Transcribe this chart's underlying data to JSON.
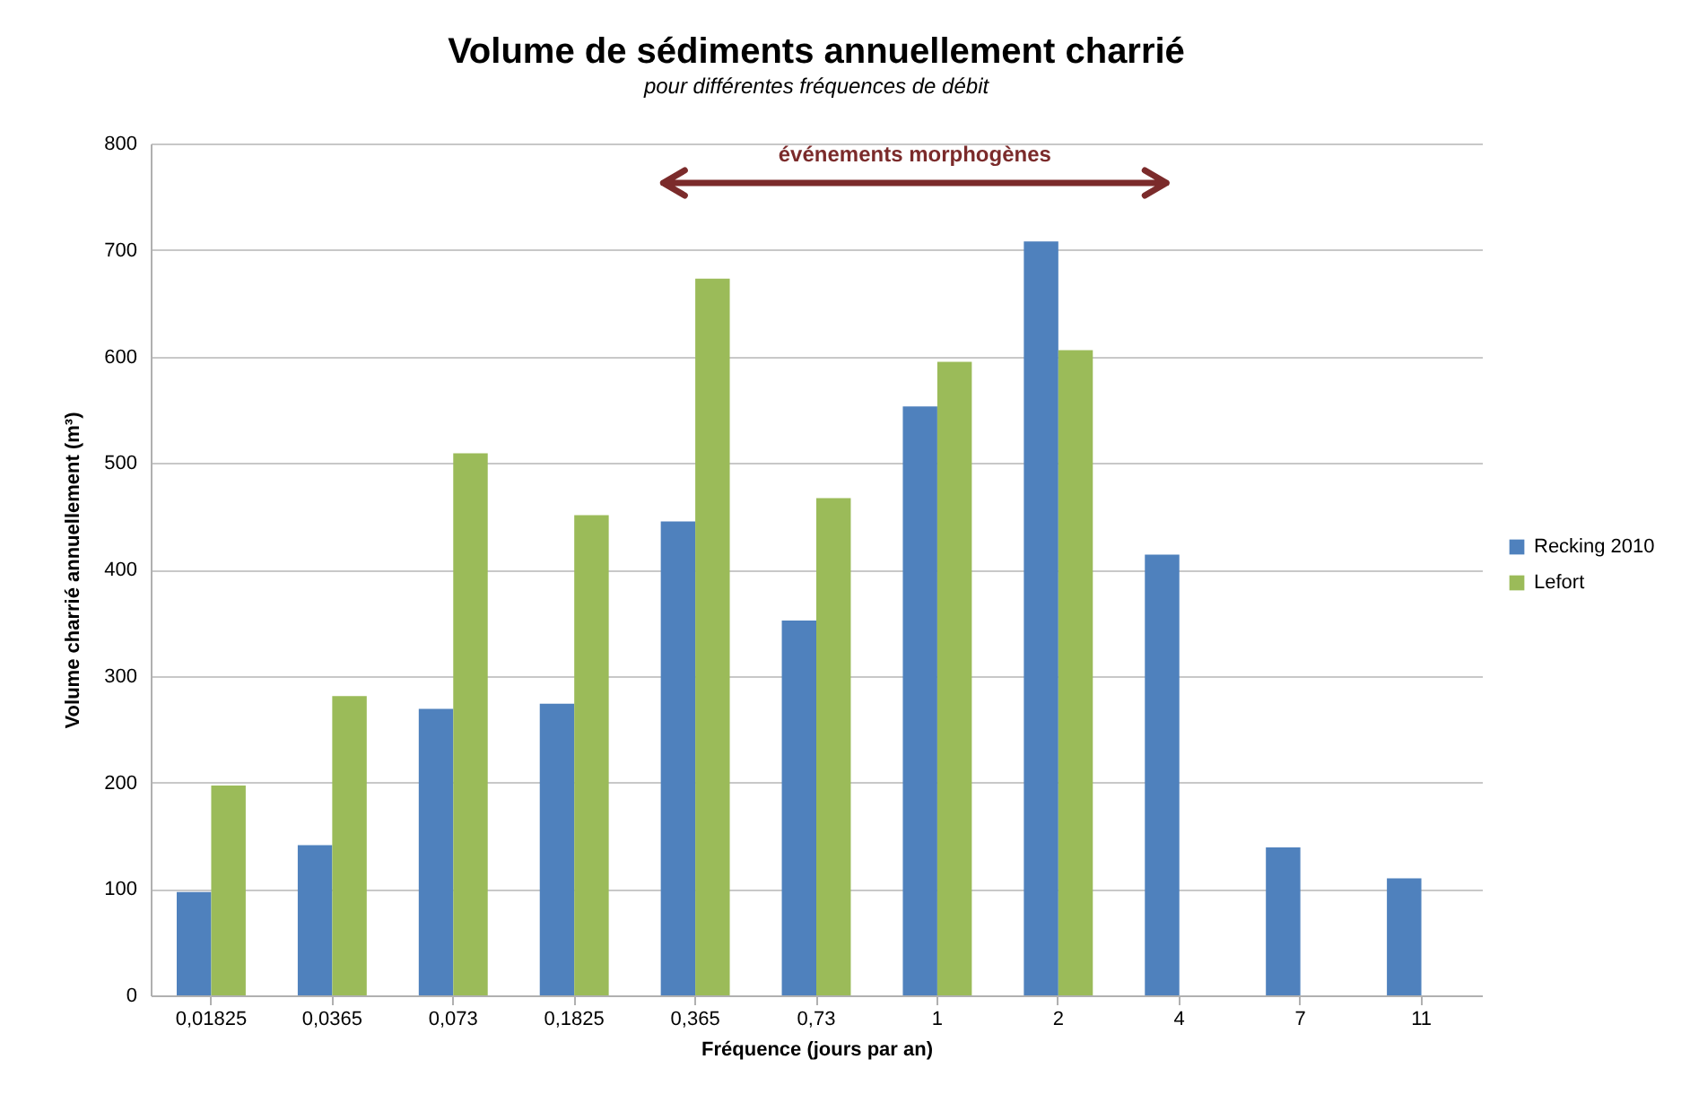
{
  "chart_data": {
    "type": "bar",
    "title": "Volume de sédiments annuellement charrié",
    "subtitle": "pour différentes fréquences de débit",
    "xlabel": "Fréquence (jours par an)",
    "ylabel": "Volume charrié annuellement  (m³)",
    "categories": [
      "0,01825",
      "0,0365",
      "0,073",
      "0,1825",
      "0,365",
      "0,73",
      "1",
      "2",
      "4",
      "7",
      "11"
    ],
    "series": [
      {
        "name": "Recking 2010",
        "color": "#4f81bd",
        "values": [
          97,
          141,
          269,
          274,
          445,
          352,
          553,
          708,
          414,
          139,
          110
        ]
      },
      {
        "name": "Lefort",
        "color": "#9bbb59",
        "values": [
          197,
          281,
          509,
          451,
          673,
          467,
          595,
          606,
          null,
          null,
          null
        ]
      }
    ],
    "ylim": [
      0,
      800
    ],
    "yticks": [
      0,
      100,
      200,
      300,
      400,
      500,
      600,
      700,
      800
    ],
    "grid": "y",
    "legend": "right",
    "annotations": [
      "événements morphogènes"
    ]
  }
}
